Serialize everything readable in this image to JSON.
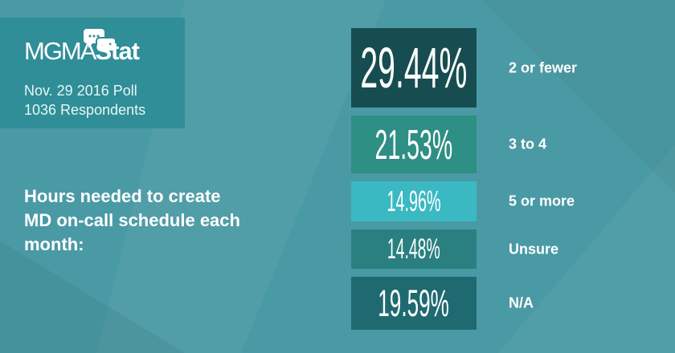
{
  "header": {
    "logo_text_light": "MGMA",
    "logo_text_bold": "Stat",
    "poll_date": "Nov. 29 2016 Poll",
    "respondents": "1036 Respondents"
  },
  "question": "Hours needed to create MD on-call schedule each month:",
  "chart_data": {
    "type": "bar",
    "orientation": "horizontal-stacked-boxes",
    "categories": [
      "2 or fewer",
      "3 to 4",
      "5 or more",
      "Unsure",
      "N/A"
    ],
    "values": [
      29.44,
      21.53,
      14.96,
      14.48,
      19.59
    ],
    "labels": [
      "29.44%",
      "21.53%",
      "14.96%",
      "14.48%",
      "19.59%"
    ],
    "colors": [
      "#174d50",
      "#2e8f84",
      "#3bb9c3",
      "#2a8080",
      "#1f6a70"
    ],
    "unit": "%"
  }
}
